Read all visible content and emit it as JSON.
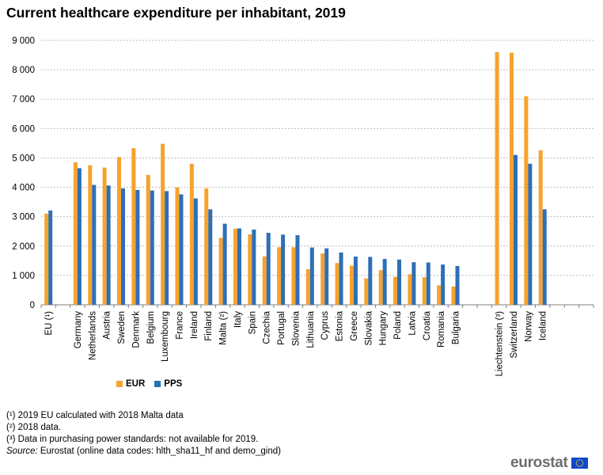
{
  "title": "Current healthcare expenditure per inhabitant, 2019",
  "colors": {
    "eur": "#f7a22c",
    "pps": "#2e6fb6",
    "grid": "#bdbdbd",
    "logo_text": "#6d6e71",
    "flag": "#0e47cb"
  },
  "legend": {
    "eur": "EUR",
    "pps": "PPS"
  },
  "footnotes": [
    "(¹) 2019 EU calculated with 2018 Malta data",
    "(²) 2018 data.",
    "(³) Data in purchasing power standards: not available for 2019."
  ],
  "source": {
    "label": "Source:",
    "text": "Eurostat (online data codes: hlth_sha11_hf  and demo_gind)"
  },
  "logo": {
    "text": "eurostat",
    "icon": "eu-flag-icon"
  },
  "chart_data": {
    "type": "bar",
    "title": "Current healthcare expenditure per inhabitant, 2019",
    "xlabel": "",
    "ylabel": "",
    "ylim": [
      0,
      9000
    ],
    "yticks": [
      0,
      1000,
      2000,
      3000,
      4000,
      5000,
      6000,
      7000,
      8000,
      9000
    ],
    "ytick_labels": [
      "0",
      "1 000",
      "2 000",
      "3 000",
      "4 000",
      "5 000",
      "6 000",
      "7 000",
      "8 000",
      "9 000"
    ],
    "grid": true,
    "legend_position": "bottom-left",
    "categories": [
      "EU (¹)",
      "",
      "Germany",
      "Netherlands",
      "Austria",
      "Sweden",
      "Denmark",
      "Belgium",
      "Luxembourg",
      "France",
      "Ireland",
      "Finland",
      "Malta (²)",
      "Italy",
      "Spain",
      "Czechia",
      "Portugal",
      "Slovenia",
      "Lithuania",
      "Cyprus",
      "Estonia",
      "Greece",
      "Slovakia",
      "Hungary",
      "Poland",
      "Latvia",
      "Croatia",
      "Romania",
      "Bulgaria",
      "",
      "",
      "Liechtenstein (³)",
      "Switzerland",
      "Norway",
      "Iceland",
      "",
      "",
      ""
    ],
    "series": [
      {
        "name": "EUR",
        "values": [
          3100,
          null,
          4850,
          4750,
          4670,
          5030,
          5330,
          4420,
          5480,
          3990,
          4800,
          3960,
          2280,
          2590,
          2400,
          1650,
          1960,
          1960,
          1210,
          1750,
          1420,
          1330,
          900,
          1180,
          950,
          1040,
          940,
          660,
          620,
          null,
          null,
          8600,
          8580,
          7100,
          5260,
          null,
          null,
          null
        ]
      },
      {
        "name": "PPS",
        "values": [
          3210,
          null,
          4650,
          4080,
          4060,
          3960,
          3910,
          3890,
          3870,
          3760,
          3620,
          3250,
          2760,
          2600,
          2560,
          2450,
          2390,
          2370,
          1950,
          1920,
          1780,
          1640,
          1630,
          1560,
          1540,
          1450,
          1440,
          1370,
          1320,
          null,
          null,
          null,
          5100,
          4800,
          3250,
          null,
          null,
          null
        ]
      }
    ]
  }
}
